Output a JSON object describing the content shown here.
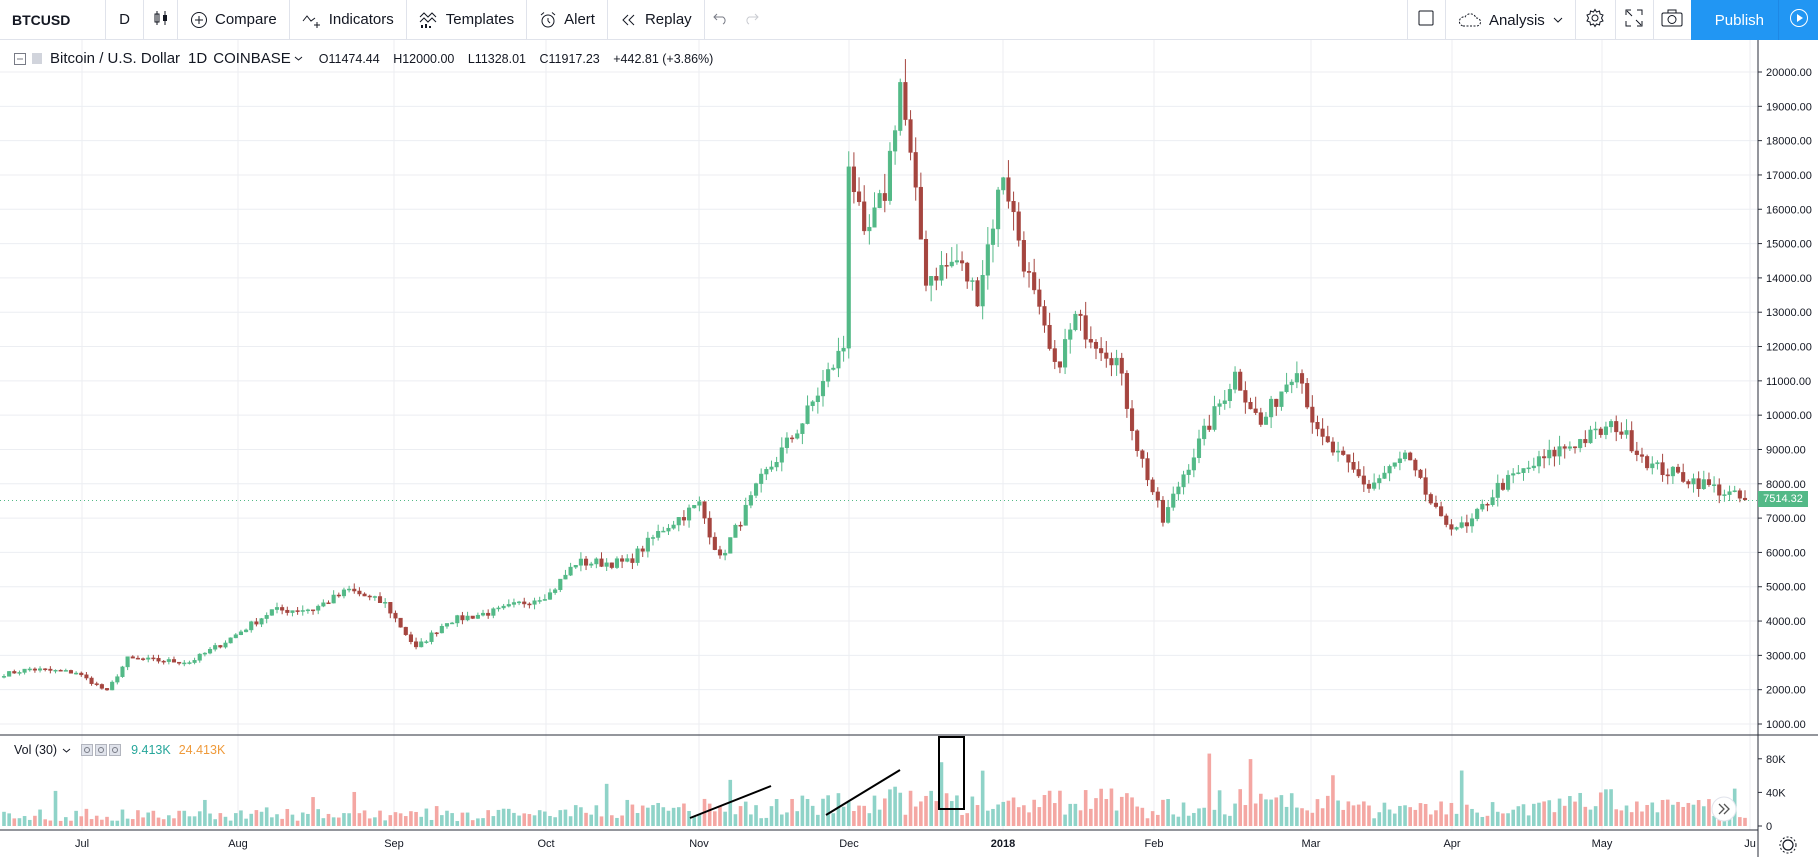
{
  "toolbar": {
    "symbol": "BTCUSD",
    "interval": "D",
    "compare_label": "Compare",
    "indicators_label": "Indicators",
    "templates_label": "Templates",
    "alert_label": "Alert",
    "replay_label": "Replay",
    "analysis_label": "Analysis",
    "publish_label": "Publish"
  },
  "legend": {
    "title": "Bitcoin / U.S. Dollar",
    "interval": "1D",
    "exchange": "COINBASE",
    "open": "O11474.44",
    "high": "H12000.00",
    "low": "L11328.01",
    "close": "C11917.23",
    "change": "+442.81 (+3.86%)"
  },
  "volume_legend": {
    "label": "Vol (30)",
    "value1": "9.413K",
    "value2": "24.413K"
  },
  "last_price": "7514.32",
  "colors": {
    "up": "#53b987",
    "down": "#a5453f",
    "vol_up": "#8fd3c8",
    "vol_down": "#f4a7a3",
    "accent": "#2196f3"
  },
  "chart_data": {
    "type": "candlestick",
    "price_axis_ticks": [
      "20000.00",
      "19000.00",
      "18000.00",
      "17000.00",
      "16000.00",
      "15000.00",
      "14000.00",
      "13000.00",
      "12000.00",
      "11000.00",
      "10000.00",
      "9000.00",
      "8000.00",
      "7000.00",
      "6000.00",
      "5000.00",
      "4000.00",
      "3000.00",
      "2000.00",
      "1000.00"
    ],
    "volume_axis_ticks": [
      "80K",
      "40K",
      "0"
    ],
    "time_axis_ticks": [
      "Jul",
      "Aug",
      "Sep",
      "Oct",
      "Nov",
      "Dec",
      "2018",
      "Feb",
      "Mar",
      "Apr",
      "May",
      "Ju"
    ],
    "ylim": [
      1000,
      20000
    ],
    "close_series": [
      {
        "x": "2017-06-26",
        "y": 2450
      },
      {
        "x": "2017-07-01",
        "y": 2600
      },
      {
        "x": "2017-07-10",
        "y": 2500
      },
      {
        "x": "2017-07-16",
        "y": 1950
      },
      {
        "x": "2017-07-20",
        "y": 2900
      },
      {
        "x": "2017-08-01",
        "y": 2800
      },
      {
        "x": "2017-08-08",
        "y": 3400
      },
      {
        "x": "2017-08-17",
        "y": 4300
      },
      {
        "x": "2017-08-25",
        "y": 4350
      },
      {
        "x": "2017-09-01",
        "y": 4900
      },
      {
        "x": "2017-09-08",
        "y": 4500
      },
      {
        "x": "2017-09-14",
        "y": 3200
      },
      {
        "x": "2017-09-20",
        "y": 4000
      },
      {
        "x": "2017-09-30",
        "y": 4300
      },
      {
        "x": "2017-10-10",
        "y": 4800
      },
      {
        "x": "2017-10-15",
        "y": 5700
      },
      {
        "x": "2017-10-25",
        "y": 5700
      },
      {
        "x": "2017-11-01",
        "y": 6700
      },
      {
        "x": "2017-11-08",
        "y": 7400
      },
      {
        "x": "2017-11-12",
        "y": 5800
      },
      {
        "x": "2017-11-20",
        "y": 8100
      },
      {
        "x": "2017-11-28",
        "y": 9800
      },
      {
        "x": "2017-12-03",
        "y": 11200
      },
      {
        "x": "2017-12-06",
        "y": 12000
      },
      {
        "x": "2017-12-07",
        "y": 17500
      },
      {
        "x": "2017-12-10",
        "y": 15000
      },
      {
        "x": "2017-12-14",
        "y": 16500
      },
      {
        "x": "2017-12-17",
        "y": 19700
      },
      {
        "x": "2017-12-22",
        "y": 14000
      },
      {
        "x": "2017-12-28",
        "y": 14500
      },
      {
        "x": "2018-01-01",
        "y": 13500
      },
      {
        "x": "2018-01-06",
        "y": 17100
      },
      {
        "x": "2018-01-10",
        "y": 14500
      },
      {
        "x": "2018-01-16",
        "y": 11300
      },
      {
        "x": "2018-01-20",
        "y": 12800
      },
      {
        "x": "2018-01-28",
        "y": 11600
      },
      {
        "x": "2018-02-01",
        "y": 9100
      },
      {
        "x": "2018-02-06",
        "y": 6900
      },
      {
        "x": "2018-02-10",
        "y": 8300
      },
      {
        "x": "2018-02-20",
        "y": 11200
      },
      {
        "x": "2018-02-25",
        "y": 9700
      },
      {
        "x": "2018-03-04",
        "y": 11500
      },
      {
        "x": "2018-03-08",
        "y": 9400
      },
      {
        "x": "2018-03-18",
        "y": 7900
      },
      {
        "x": "2018-03-25",
        "y": 8800
      },
      {
        "x": "2018-04-01",
        "y": 6900
      },
      {
        "x": "2018-04-06",
        "y": 6700
      },
      {
        "x": "2018-04-12",
        "y": 7900
      },
      {
        "x": "2018-04-24",
        "y": 9000
      },
      {
        "x": "2018-05-05",
        "y": 9700
      },
      {
        "x": "2018-05-12",
        "y": 8500
      },
      {
        "x": "2018-05-22",
        "y": 8000
      },
      {
        "x": "2018-05-30",
        "y": 7500
      }
    ]
  }
}
